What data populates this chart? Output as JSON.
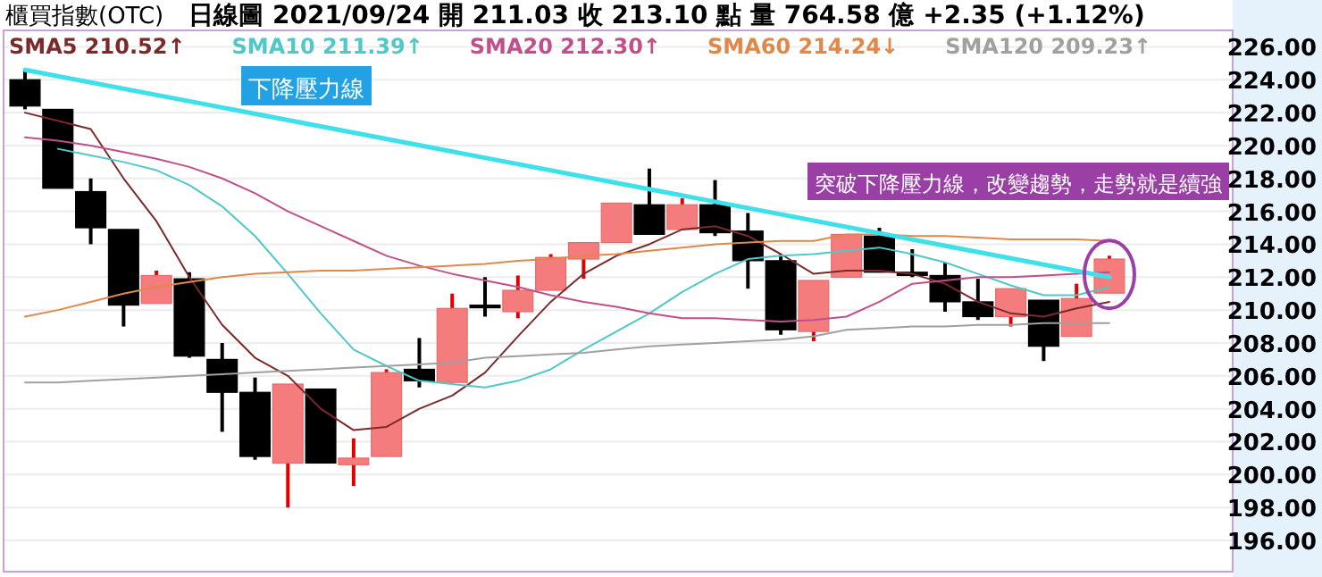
{
  "chart_data": {
    "type": "candlestick",
    "title": "櫃買指數(OTC)",
    "subtitle": "日線圖   2021/09/24   開 211.03   收 213.10   點   量 764.58 億   +2.35 (+1.12%)",
    "categories": [
      null,
      null,
      null,
      null,
      null,
      null,
      null,
      null,
      null,
      null,
      null,
      null,
      null,
      null,
      null,
      null,
      null,
      null,
      null,
      null,
      null,
      null,
      null,
      null,
      null,
      null,
      null,
      null,
      null,
      null,
      null,
      null,
      null,
      null
    ],
    "ohlc": [
      [
        224.0,
        224.6,
        222.2,
        222.4
      ],
      [
        222.2,
        222.2,
        217.4,
        217.4
      ],
      [
        217.2,
        218.0,
        214.0,
        215.0
      ],
      [
        214.9,
        214.9,
        209.0,
        210.3
      ],
      [
        210.4,
        212.4,
        210.4,
        212.1
      ],
      [
        211.9,
        212.3,
        207.1,
        207.2
      ],
      [
        207.0,
        208.0,
        202.6,
        205.0
      ],
      [
        205.0,
        205.9,
        200.9,
        201.1
      ],
      [
        200.7,
        205.5,
        198.0,
        205.5
      ],
      [
        205.2,
        205.2,
        200.7,
        200.7
      ],
      [
        200.6,
        202.2,
        199.3,
        201.0
      ],
      [
        201.1,
        206.4,
        201.1,
        206.2
      ],
      [
        206.4,
        208.3,
        205.3,
        205.7
      ],
      [
        205.6,
        211.0,
        205.6,
        210.1
      ],
      [
        210.3,
        212.0,
        209.6,
        210.2
      ],
      [
        209.9,
        212.1,
        209.5,
        211.2
      ],
      [
        211.2,
        213.4,
        211.2,
        213.2
      ],
      [
        213.1,
        214.1,
        211.9,
        214.1
      ],
      [
        214.1,
        216.5,
        214.1,
        216.5
      ],
      [
        216.4,
        218.6,
        214.6,
        214.6
      ],
      [
        214.9,
        216.8,
        214.9,
        216.4
      ],
      [
        216.4,
        217.9,
        214.5,
        214.7
      ],
      [
        214.8,
        215.9,
        211.3,
        213.0
      ],
      [
        213.0,
        213.4,
        208.5,
        208.8
      ],
      [
        208.7,
        211.8,
        208.1,
        211.8
      ],
      [
        212.0,
        214.6,
        212.0,
        214.6
      ],
      [
        214.5,
        215.0,
        212.3,
        212.3
      ],
      [
        212.3,
        213.7,
        212.0,
        212.1
      ],
      [
        212.1,
        212.9,
        209.9,
        210.5
      ],
      [
        210.5,
        211.9,
        209.4,
        209.6
      ],
      [
        209.6,
        211.3,
        209.0,
        211.3
      ],
      [
        210.6,
        210.6,
        206.9,
        207.8
      ],
      [
        208.4,
        211.6,
        208.4,
        210.7
      ],
      [
        211.03,
        213.3,
        211.03,
        213.1
      ]
    ],
    "colors": [
      "#000000",
      "#000000",
      "#000000",
      "#000000",
      "#f47c7c",
      "#000000",
      "#000000",
      "#000000",
      "#f47c7c",
      "#000000",
      "#f47c7c",
      "#f47c7c",
      "#000000",
      "#f47c7c",
      "#000000",
      "#f47c7c",
      "#f47c7c",
      "#f47c7c",
      "#f47c7c",
      "#000000",
      "#f47c7c",
      "#000000",
      "#000000",
      "#000000",
      "#f47c7c",
      "#f47c7c",
      "#000000",
      "#000000",
      "#000000",
      "#000000",
      "#f47c7c",
      "#000000",
      "#f47c7c",
      "#f47c7c"
    ],
    "series": [
      {
        "name": "SMA5 210.52↑",
        "color": "#7a2a2a",
        "type": "line",
        "values": [
          222.0,
          221.5,
          221.0,
          218.0,
          215.4,
          212.0,
          209.1,
          207.1,
          206.0,
          204.0,
          202.7,
          202.9,
          204.0,
          204.8,
          206.2,
          208.4,
          210.5,
          212.2,
          213.3,
          214.0,
          214.9,
          215.1,
          214.5,
          213.4,
          212.2,
          212.4,
          212.4,
          212.2,
          211.6,
          210.5,
          209.8,
          209.6,
          210.1,
          210.5
        ]
      },
      {
        "name": "SMA10 211.39↑",
        "color": "#4fc8c8",
        "type": "line",
        "values": [
          null,
          219.8,
          219.4,
          219.0,
          218.5,
          217.6,
          216.3,
          214.5,
          212.2,
          209.8,
          207.6,
          206.6,
          205.7,
          205.5,
          205.3,
          205.7,
          206.4,
          207.6,
          208.7,
          209.8,
          211.1,
          212.2,
          213.1,
          213.3,
          213.4,
          213.6,
          213.8,
          213.4,
          212.9,
          212.2,
          211.5,
          210.9,
          210.9,
          211.4
        ]
      },
      {
        "name": "SMA20 212.30↑",
        "color": "#c0508a",
        "type": "line",
        "values": [
          220.5,
          220.3,
          220.0,
          219.6,
          219.2,
          218.7,
          218.0,
          217.1,
          216.0,
          215.1,
          214.2,
          213.3,
          212.7,
          212.2,
          211.8,
          211.4,
          210.9,
          210.5,
          210.2,
          209.8,
          209.5,
          209.5,
          209.4,
          209.3,
          209.4,
          209.6,
          210.5,
          211.6,
          211.8,
          212.0,
          212.0,
          212.1,
          212.2,
          212.3
        ]
      },
      {
        "name": "SMA60 214.24↓",
        "color": "#e0884a",
        "type": "line",
        "values": [
          209.6,
          210.0,
          210.5,
          211.0,
          211.4,
          211.7,
          212.0,
          212.2,
          212.3,
          212.4,
          212.4,
          212.5,
          212.6,
          212.7,
          212.8,
          213.0,
          213.1,
          213.3,
          213.4,
          213.6,
          213.8,
          214.0,
          214.1,
          214.2,
          214.2,
          214.6,
          214.6,
          214.5,
          214.5,
          214.4,
          214.3,
          214.3,
          214.3,
          214.2
        ]
      },
      {
        "name": "SMA120 209.23↑",
        "color": "#a0a0a0",
        "type": "line",
        "values": [
          205.6,
          205.6,
          205.7,
          205.8,
          205.9,
          206.0,
          206.1,
          206.2,
          206.3,
          206.4,
          206.5,
          206.6,
          206.7,
          206.8,
          207.1,
          207.2,
          207.3,
          207.4,
          207.6,
          207.8,
          207.9,
          208.0,
          208.1,
          208.2,
          208.4,
          208.8,
          208.9,
          209.0,
          209.0,
          209.1,
          209.1,
          209.2,
          209.2,
          209.2
        ]
      },
      {
        "type": "line",
        "color": "#3ee0ea",
        "values": [
          224.6,
          null,
          null,
          null,
          null,
          null,
          null,
          null,
          null,
          null,
          null,
          null,
          null,
          null,
          null,
          null,
          null,
          null,
          null,
          null,
          null,
          null,
          null,
          null,
          null,
          null,
          null,
          null,
          null,
          null,
          null,
          null,
          null,
          212.0
        ]
      }
    ],
    "ylim": [
      194.1,
      227
    ],
    "yticks": [
      {
        "value": 196,
        "label": "196.00"
      },
      {
        "value": 198,
        "label": "198.00"
      },
      {
        "value": 200,
        "label": "200.00"
      },
      {
        "value": 202,
        "label": "202.00"
      },
      {
        "value": 204,
        "label": "204.00"
      },
      {
        "value": 206,
        "label": "206.00"
      },
      {
        "value": 208,
        "label": "208.00"
      },
      {
        "value": 210,
        "label": "210.00"
      },
      {
        "value": 212,
        "label": "212.00"
      },
      {
        "value": 214,
        "label": "214.00"
      },
      {
        "value": 216,
        "label": "216.00"
      },
      {
        "value": 218,
        "label": "218.00"
      },
      {
        "value": 220,
        "label": "220.00"
      },
      {
        "value": 222,
        "label": "222.00"
      },
      {
        "value": 224,
        "label": "224.00"
      },
      {
        "value": 226,
        "label": "226.00"
      }
    ],
    "grid": "y",
    "legend": "top left",
    "annotations": [
      "下降壓力線",
      "突破下降壓力線，改變趨勢，走勢就是續強"
    ]
  }
}
